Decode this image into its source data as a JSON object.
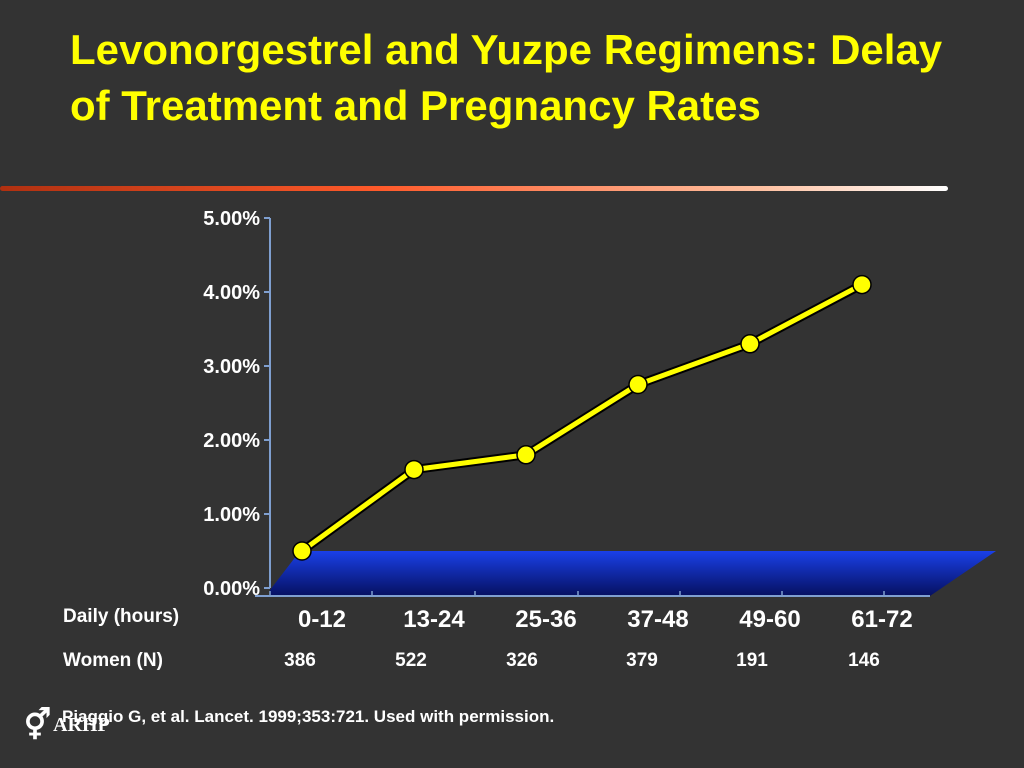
{
  "slide": {
    "title": "Levonorgestrel and Yuzpe Regimens: Delay of Treatment and Pregnancy Rates",
    "citation": "Piaggio G, et al. Lancet. 1999;353:721. Used with permission.",
    "logo_text": "ARHP",
    "logo_icon": "gender-symbol-icon"
  },
  "table": {
    "row1_label": "Daily (hours)",
    "row2_label": "Women (N)",
    "women_n": [
      "386",
      "522",
      "326",
      "379",
      "191",
      "146"
    ]
  },
  "colors": {
    "background": "#333333",
    "title": "#ffff00",
    "line": "#ffff00",
    "floor": "#1030c8",
    "axis": "#7f9fd0"
  },
  "chart_data": {
    "type": "line",
    "categories": [
      "0-12",
      "13-24",
      "25-36",
      "37-48",
      "49-60",
      "61-72"
    ],
    "series": [
      {
        "values": [
          0.5,
          1.6,
          1.8,
          2.75,
          3.3,
          4.1
        ]
      }
    ],
    "y_tick_labels": [
      "0.00%",
      "1.00%",
      "2.00%",
      "3.00%",
      "4.00%",
      "5.00%"
    ],
    "ylim": [
      0,
      5
    ],
    "grid": false,
    "legend": "none",
    "xlabel": "",
    "ylabel": ""
  }
}
